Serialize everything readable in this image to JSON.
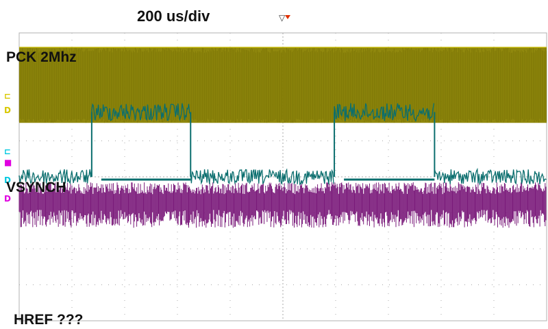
{
  "chart_data": {
    "type": "line",
    "title": "",
    "timebase": "200 us/div",
    "grid": true,
    "x_divisions": 10,
    "y_divisions": 8,
    "xlim": [
      0,
      2000
    ],
    "x_unit": "us",
    "trigger_position_us": 1000,
    "annotations": [
      "PCK 2Mhz",
      "VSYNCH",
      "HREF ???"
    ],
    "series": [
      {
        "name": "PCK 2Mhz",
        "color": "#8a8200",
        "kind": "square-clock",
        "frequency_hz": 2000000,
        "high_level_div": 0.4,
        "low_level_div": 2.5
      },
      {
        "name": "VSYNCH",
        "color": "#0a6e6e",
        "kind": "pulse-train",
        "high_level_div": 2.2,
        "low_level_div": 4.0,
        "pulses_us": [
          [
            275,
            650
          ],
          [
            1195,
            1575
          ]
        ]
      },
      {
        "name": "HREF ???",
        "color": "#7a1a7a",
        "kind": "noise",
        "center_level_div": 4.7,
        "amplitude_div": 0.55
      }
    ]
  },
  "ui": {
    "trigger_glyph": "▽",
    "ch_markers": [
      {
        "symbol": "⊏",
        "color": "#d8c800",
        "level_div": 1.75
      },
      {
        "symbol": "D",
        "color": "#d8c800",
        "level_div": 2.15
      },
      {
        "symbol": "⊏",
        "color": "#00c8e0",
        "level_div": 3.3
      },
      {
        "symbol": "■",
        "color": "#e000e0",
        "level_div": 3.6
      },
      {
        "symbol": "D",
        "color": "#00c8e0",
        "level_div": 4.1
      },
      {
        "symbol": "D",
        "color": "#e000e0",
        "level_div": 4.6
      }
    ]
  }
}
